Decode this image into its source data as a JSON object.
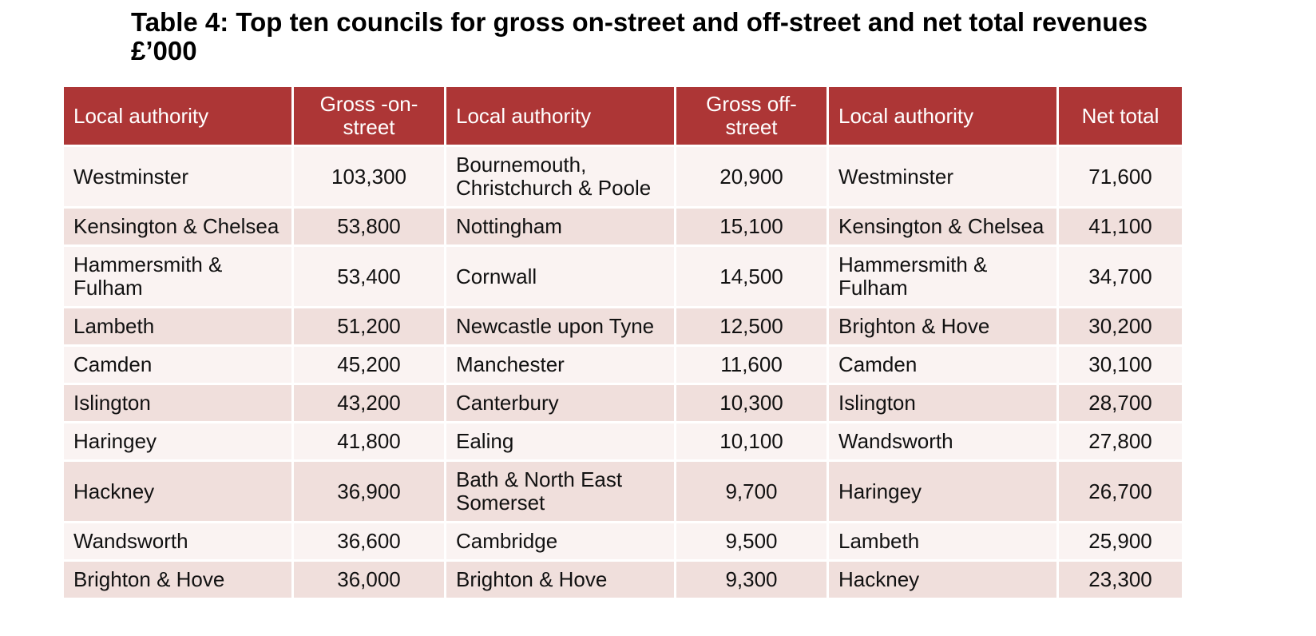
{
  "title": "Table 4: Top ten councils for gross on-street and off-street and net total revenues £’000",
  "colors": {
    "header_bg": "#ad3636",
    "header_text": "#ffffff",
    "row_light": "#faf3f2",
    "row_dark": "#f0dfdc"
  },
  "headers": {
    "col1": "Local authority",
    "col2": "Gross -on-street",
    "col3": "Local authority",
    "col4": "Gross off-street",
    "col5": "Local authority",
    "col6": "Net total"
  },
  "rows": [
    {
      "on_la": "Westminster",
      "on_val": "103,300",
      "off_la": "Bournemouth, Christchurch & Poole",
      "off_val": "20,900",
      "net_la": "Westminster",
      "net_val": "71,600"
    },
    {
      "on_la": "Kensington & Chelsea",
      "on_val": "53,800",
      "off_la": "Nottingham",
      "off_val": "15,100",
      "net_la": "Kensington & Chelsea",
      "net_val": "41,100"
    },
    {
      "on_la": "Hammersmith & Fulham",
      "on_val": "53,400",
      "off_la": "Cornwall",
      "off_val": "14,500",
      "net_la": "Hammersmith & Fulham",
      "net_val": "34,700"
    },
    {
      "on_la": "Lambeth",
      "on_val": "51,200",
      "off_la": "Newcastle upon Tyne",
      "off_val": "12,500",
      "net_la": "Brighton & Hove",
      "net_val": "30,200"
    },
    {
      "on_la": "Camden",
      "on_val": "45,200",
      "off_la": "Manchester",
      "off_val": "11,600",
      "net_la": "Camden",
      "net_val": "30,100"
    },
    {
      "on_la": "Islington",
      "on_val": "43,200",
      "off_la": "Canterbury",
      "off_val": "10,300",
      "net_la": "Islington",
      "net_val": "28,700"
    },
    {
      "on_la": "Haringey",
      "on_val": "41,800",
      "off_la": "Ealing",
      "off_val": "10,100",
      "net_la": "Wandsworth",
      "net_val": "27,800"
    },
    {
      "on_la": "Hackney",
      "on_val": "36,900",
      "off_la": "Bath & North East Somerset",
      "off_val": "9,700",
      "net_la": "Haringey",
      "net_val": "26,700"
    },
    {
      "on_la": "Wandsworth",
      "on_val": "36,600",
      "off_la": "Cambridge",
      "off_val": "9,500",
      "net_la": "Lambeth",
      "net_val": "25,900"
    },
    {
      "on_la": "Brighton & Hove",
      "on_val": "36,000",
      "off_la": "Brighton & Hove",
      "off_val": "9,300",
      "net_la": "Hackney",
      "net_val": "23,300"
    }
  ]
}
